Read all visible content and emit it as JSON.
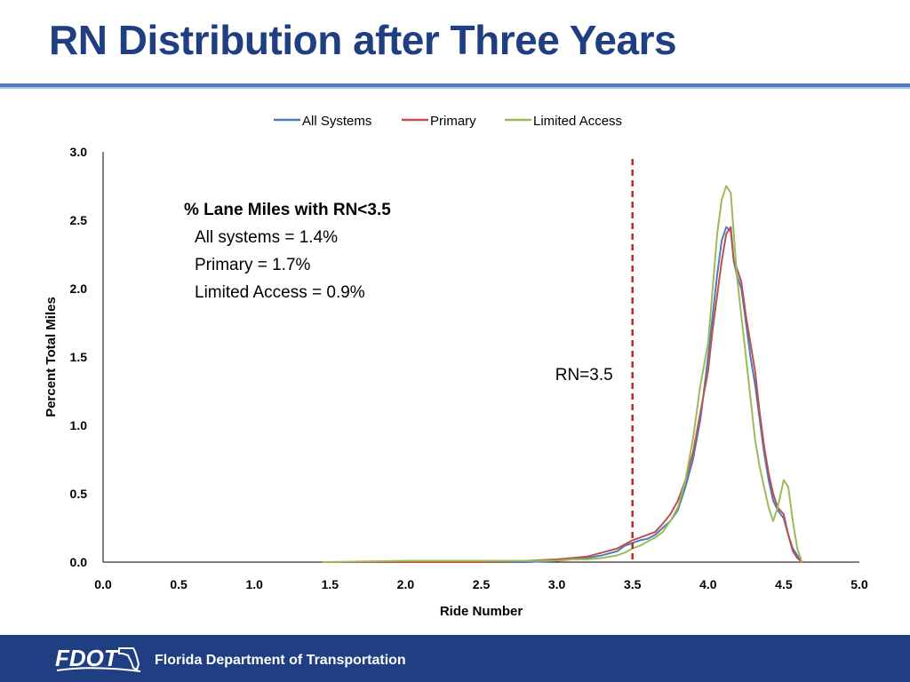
{
  "slide": {
    "title": "RN Distribution after Three Years",
    "footer_text": "Florida Department of Transportation",
    "logo_text": "FDOT"
  },
  "colors": {
    "title": "#1f3f82",
    "footer_bg": "#1f3f82",
    "threshold_line": "#c0272d"
  },
  "chart_data": {
    "type": "line",
    "title": "",
    "xlabel": "Ride Number",
    "ylabel": "Percent Total Miles",
    "xlim": [
      0,
      5
    ],
    "ylim": [
      0,
      3
    ],
    "x_ticks": [
      "0.0",
      "0.5",
      "1.0",
      "1.5",
      "2.0",
      "2.5",
      "3.0",
      "3.5",
      "4.0",
      "4.5",
      "5.0"
    ],
    "y_ticks": [
      "0.0",
      "0.5",
      "1.0",
      "1.5",
      "2.0",
      "2.5",
      "3.0"
    ],
    "legend_position": "top-center",
    "grid": false,
    "series": [
      {
        "name": "All Systems",
        "color": "#4a7ebb",
        "x": [
          1.45,
          2.0,
          2.5,
          2.8,
          3.0,
          3.1,
          3.2,
          3.3,
          3.4,
          3.45,
          3.5,
          3.55,
          3.6,
          3.65,
          3.7,
          3.75,
          3.8,
          3.85,
          3.9,
          3.95,
          4.0,
          4.03,
          4.06,
          4.09,
          4.12,
          4.15,
          4.17,
          4.19,
          4.22,
          4.25,
          4.28,
          4.31,
          4.34,
          4.37,
          4.4,
          4.43,
          4.46,
          4.5,
          4.53,
          4.56,
          4.59,
          4.62
        ],
        "values": [
          0.0,
          0.0,
          0.0,
          0.0,
          0.01,
          0.02,
          0.03,
          0.05,
          0.08,
          0.12,
          0.14,
          0.16,
          0.17,
          0.2,
          0.25,
          0.3,
          0.38,
          0.55,
          0.75,
          1.05,
          1.5,
          1.8,
          2.1,
          2.35,
          2.45,
          2.42,
          2.2,
          2.1,
          2.0,
          1.75,
          1.5,
          1.3,
          1.05,
          0.8,
          0.6,
          0.45,
          0.38,
          0.32,
          0.2,
          0.1,
          0.05,
          0.0
        ]
      },
      {
        "name": "Primary",
        "color": "#c0504d",
        "x": [
          1.45,
          2.0,
          2.5,
          2.8,
          3.0,
          3.1,
          3.2,
          3.3,
          3.4,
          3.45,
          3.5,
          3.55,
          3.6,
          3.65,
          3.7,
          3.75,
          3.8,
          3.85,
          3.9,
          3.95,
          4.0,
          4.03,
          4.06,
          4.09,
          4.12,
          4.15,
          4.17,
          4.19,
          4.22,
          4.25,
          4.28,
          4.31,
          4.34,
          4.37,
          4.4,
          4.43,
          4.46,
          4.5,
          4.53,
          4.56,
          4.59,
          4.62
        ],
        "values": [
          0.0,
          0.0,
          0.0,
          0.01,
          0.02,
          0.03,
          0.04,
          0.07,
          0.1,
          0.13,
          0.16,
          0.18,
          0.2,
          0.22,
          0.28,
          0.35,
          0.45,
          0.6,
          0.8,
          1.1,
          1.4,
          1.7,
          1.95,
          2.2,
          2.4,
          2.45,
          2.2,
          2.15,
          2.05,
          1.8,
          1.6,
          1.4,
          1.1,
          0.85,
          0.65,
          0.5,
          0.4,
          0.35,
          0.2,
          0.08,
          0.03,
          0.0
        ]
      },
      {
        "name": "Limited Access",
        "color": "#9bbb59",
        "x": [
          1.45,
          2.0,
          2.5,
          2.8,
          3.0,
          3.1,
          3.2,
          3.3,
          3.4,
          3.45,
          3.5,
          3.55,
          3.6,
          3.65,
          3.7,
          3.75,
          3.8,
          3.85,
          3.9,
          3.95,
          4.0,
          4.03,
          4.06,
          4.09,
          4.12,
          4.15,
          4.17,
          4.19,
          4.22,
          4.25,
          4.28,
          4.31,
          4.34,
          4.37,
          4.4,
          4.43,
          4.46,
          4.5,
          4.53,
          4.56,
          4.59,
          4.62
        ],
        "values": [
          0.0,
          0.01,
          0.01,
          0.01,
          0.01,
          0.02,
          0.02,
          0.03,
          0.05,
          0.07,
          0.1,
          0.12,
          0.15,
          0.18,
          0.22,
          0.3,
          0.4,
          0.6,
          0.9,
          1.3,
          1.6,
          2.0,
          2.4,
          2.65,
          2.75,
          2.7,
          2.4,
          2.1,
          1.8,
          1.5,
          1.2,
          0.9,
          0.7,
          0.55,
          0.4,
          0.3,
          0.4,
          0.6,
          0.55,
          0.3,
          0.1,
          0.0
        ]
      }
    ],
    "threshold": {
      "x": 3.5,
      "label": "RN=3.5"
    },
    "annotation": {
      "heading": "% Lane Miles with RN<3.5",
      "lines": [
        "All systems = 1.4%",
        "Primary = 1.7%",
        "Limited Access = 0.9%"
      ]
    }
  }
}
